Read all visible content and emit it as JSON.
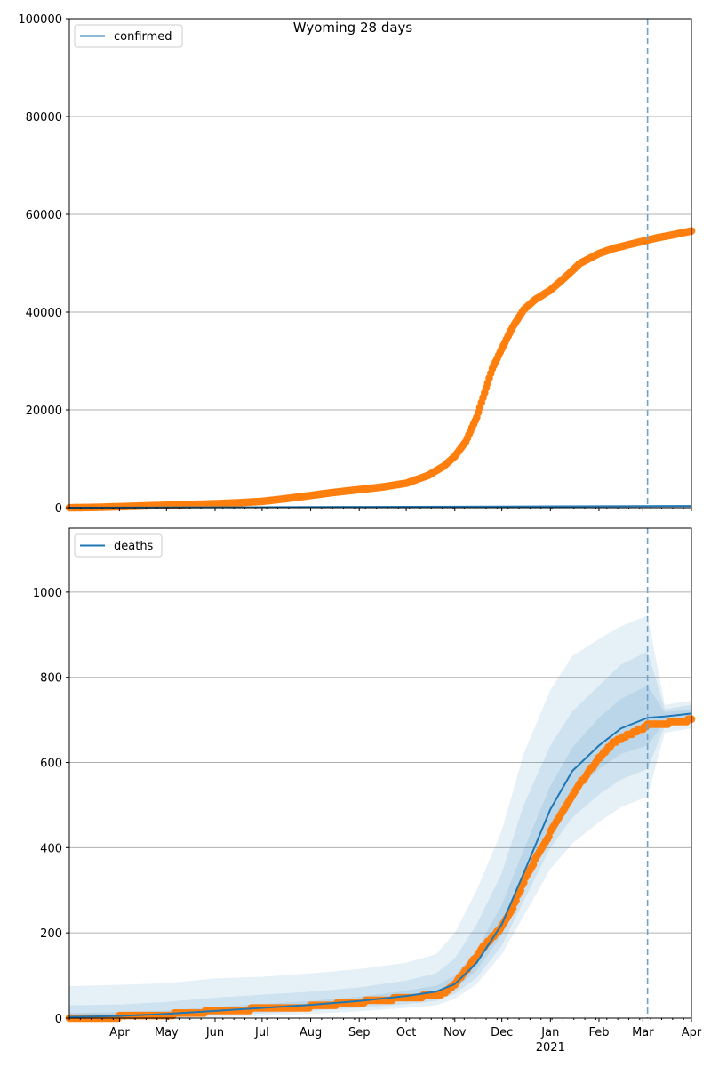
{
  "title": "Wyoming 28 days",
  "colors": {
    "model": "#1f77b4",
    "observed": "#ff7f0e",
    "band": "#1f77b4",
    "grid": "#b0b0b0",
    "cutoff": "#6fa3cc"
  },
  "x_axis": {
    "start": "2020-02-29",
    "end": "2021-04-01",
    "month_ticks": [
      {
        "date": "2020-04-01",
        "label": "Apr"
      },
      {
        "date": "2020-05-01",
        "label": "May"
      },
      {
        "date": "2020-06-01",
        "label": "Jun"
      },
      {
        "date": "2020-07-01",
        "label": "Jul"
      },
      {
        "date": "2020-08-01",
        "label": "Aug"
      },
      {
        "date": "2020-09-01",
        "label": "Sep"
      },
      {
        "date": "2020-10-01",
        "label": "Oct"
      },
      {
        "date": "2020-11-01",
        "label": "Nov"
      },
      {
        "date": "2020-12-01",
        "label": "Dec"
      },
      {
        "date": "2021-01-01",
        "label": "Jan"
      },
      {
        "date": "2021-02-01",
        "label": "Feb"
      },
      {
        "date": "2021-03-01",
        "label": "Mar"
      },
      {
        "date": "2021-04-01",
        "label": "Apr"
      }
    ],
    "year_label": {
      "date": "2021-01-01",
      "label": "2021"
    }
  },
  "forecast_start": "2021-03-04",
  "chart_data": [
    {
      "type": "line",
      "legend": {
        "label": "confirmed",
        "position": "upper-left"
      },
      "ylim": [
        0,
        100000
      ],
      "yticks": [
        0,
        20000,
        40000,
        60000,
        80000,
        100000
      ],
      "grid": true,
      "model": {
        "x": [
          "2020-02-29",
          "2020-06-01",
          "2020-09-01",
          "2020-12-01",
          "2021-03-04",
          "2021-04-01"
        ],
        "y": [
          0,
          80,
          160,
          240,
          330,
          350
        ]
      },
      "observed": {
        "x": [
          "2020-02-29",
          "2020-03-15",
          "2020-04-01",
          "2020-04-15",
          "2020-05-01",
          "2020-05-15",
          "2020-06-01",
          "2020-06-15",
          "2020-07-01",
          "2020-07-15",
          "2020-08-01",
          "2020-08-15",
          "2020-09-01",
          "2020-09-15",
          "2020-10-01",
          "2020-10-15",
          "2020-10-25",
          "2020-11-01",
          "2020-11-08",
          "2020-11-15",
          "2020-11-20",
          "2020-11-25",
          "2020-12-01",
          "2020-12-08",
          "2020-12-15",
          "2020-12-22",
          "2021-01-01",
          "2021-01-10",
          "2021-01-20",
          "2021-02-01",
          "2021-02-10",
          "2021-02-20",
          "2021-03-01",
          "2021-03-10",
          "2021-03-20",
          "2021-04-01"
        ],
        "y": [
          0,
          50,
          200,
          350,
          500,
          650,
          800,
          1000,
          1300,
          1800,
          2500,
          3100,
          3700,
          4200,
          5000,
          6600,
          8500,
          10500,
          13500,
          18500,
          23500,
          28500,
          32500,
          37000,
          40500,
          42500,
          44500,
          47000,
          50000,
          52000,
          53000,
          53800,
          54500,
          55200,
          55800,
          56600
        ]
      }
    },
    {
      "type": "line",
      "legend": {
        "label": "deaths",
        "position": "upper-left"
      },
      "ylim": [
        0,
        1150
      ],
      "yticks": [
        0,
        200,
        400,
        600,
        800,
        1000
      ],
      "grid": true,
      "model": {
        "x": [
          "2020-02-29",
          "2020-04-01",
          "2020-05-01",
          "2020-06-01",
          "2020-07-01",
          "2020-08-01",
          "2020-09-01",
          "2020-10-01",
          "2020-10-20",
          "2020-11-01",
          "2020-11-15",
          "2020-12-01",
          "2020-12-15",
          "2021-01-01",
          "2021-01-15",
          "2021-02-01",
          "2021-02-15",
          "2021-03-04",
          "2021-03-15",
          "2021-04-01"
        ],
        "y": [
          3,
          5,
          10,
          17,
          24,
          31,
          40,
          52,
          62,
          80,
          130,
          220,
          340,
          490,
          580,
          640,
          680,
          705,
          708,
          715
        ]
      },
      "bands": [
        {
          "name": "band-95",
          "x": [
            "2020-02-29",
            "2020-04-01",
            "2020-05-01",
            "2020-06-01",
            "2020-07-01",
            "2020-08-01",
            "2020-09-01",
            "2020-10-01",
            "2020-10-20",
            "2020-11-01",
            "2020-11-15",
            "2020-12-01",
            "2020-12-15",
            "2021-01-01",
            "2021-01-15",
            "2021-02-01",
            "2021-02-15",
            "2021-03-04",
            "2021-03-15",
            "2021-04-01"
          ],
          "low": [
            0,
            0,
            0,
            2,
            5,
            10,
            16,
            24,
            30,
            45,
            80,
            150,
            240,
            350,
            410,
            460,
            495,
            520,
            670,
            680
          ],
          "high": [
            75,
            78,
            82,
            93,
            97,
            105,
            115,
            130,
            150,
            200,
            300,
            440,
            620,
            770,
            850,
            890,
            920,
            945,
            735,
            745
          ]
        },
        {
          "name": "band-80",
          "x": [
            "2020-02-29",
            "2020-04-01",
            "2020-05-01",
            "2020-06-01",
            "2020-07-01",
            "2020-08-01",
            "2020-09-01",
            "2020-10-01",
            "2020-10-20",
            "2020-11-01",
            "2020-11-15",
            "2020-12-01",
            "2020-12-15",
            "2021-01-01",
            "2021-01-15",
            "2021-02-01",
            "2021-02-15",
            "2021-03-04",
            "2021-03-15",
            "2021-04-01"
          ],
          "low": [
            0,
            0,
            2,
            6,
            11,
            17,
            24,
            33,
            40,
            57,
            95,
            170,
            275,
            400,
            470,
            525,
            560,
            585,
            685,
            695
          ],
          "high": [
            30,
            32,
            38,
            48,
            55,
            62,
            72,
            88,
            105,
            140,
            220,
            340,
            500,
            640,
            720,
            780,
            830,
            860,
            725,
            735
          ]
        },
        {
          "name": "band-50",
          "x": [
            "2020-02-29",
            "2020-04-01",
            "2020-05-01",
            "2020-06-01",
            "2020-07-01",
            "2020-08-01",
            "2020-09-01",
            "2020-10-01",
            "2020-10-20",
            "2020-11-01",
            "2020-11-15",
            "2020-12-01",
            "2020-12-15",
            "2021-01-01",
            "2021-01-15",
            "2021-02-01",
            "2021-02-15",
            "2021-03-04",
            "2021-03-15",
            "2021-04-01"
          ],
          "low": [
            0,
            2,
            6,
            11,
            17,
            24,
            32,
            43,
            51,
            68,
            112,
            195,
            305,
            445,
            525,
            585,
            620,
            640,
            695,
            705
          ],
          "high": [
            12,
            14,
            18,
            26,
            33,
            40,
            50,
            64,
            76,
            100,
            160,
            265,
            395,
            545,
            635,
            705,
            750,
            780,
            718,
            725
          ]
        }
      ],
      "observed": {
        "x": [
          "2020-02-29",
          "2020-04-01",
          "2020-05-01",
          "2020-05-20",
          "2020-06-01",
          "2020-07-01",
          "2020-08-01",
          "2020-09-01",
          "2020-09-15",
          "2020-10-01",
          "2020-10-15",
          "2020-10-25",
          "2020-11-01",
          "2020-11-10",
          "2020-11-20",
          "2020-12-01",
          "2020-12-08",
          "2020-12-15",
          "2020-12-22",
          "2021-01-01",
          "2021-01-10",
          "2021-01-20",
          "2021-02-01",
          "2021-02-10",
          "2021-02-20",
          "2021-03-01",
          "2021-03-04",
          "2021-03-15",
          "2021-04-01"
        ],
        "y": [
          2,
          3,
          8,
          12,
          18,
          22,
          27,
          38,
          42,
          48,
          52,
          58,
          80,
          120,
          170,
          215,
          260,
          320,
          370,
          435,
          490,
          550,
          610,
          645,
          665,
          680,
          688,
          692,
          700
        ]
      }
    }
  ]
}
